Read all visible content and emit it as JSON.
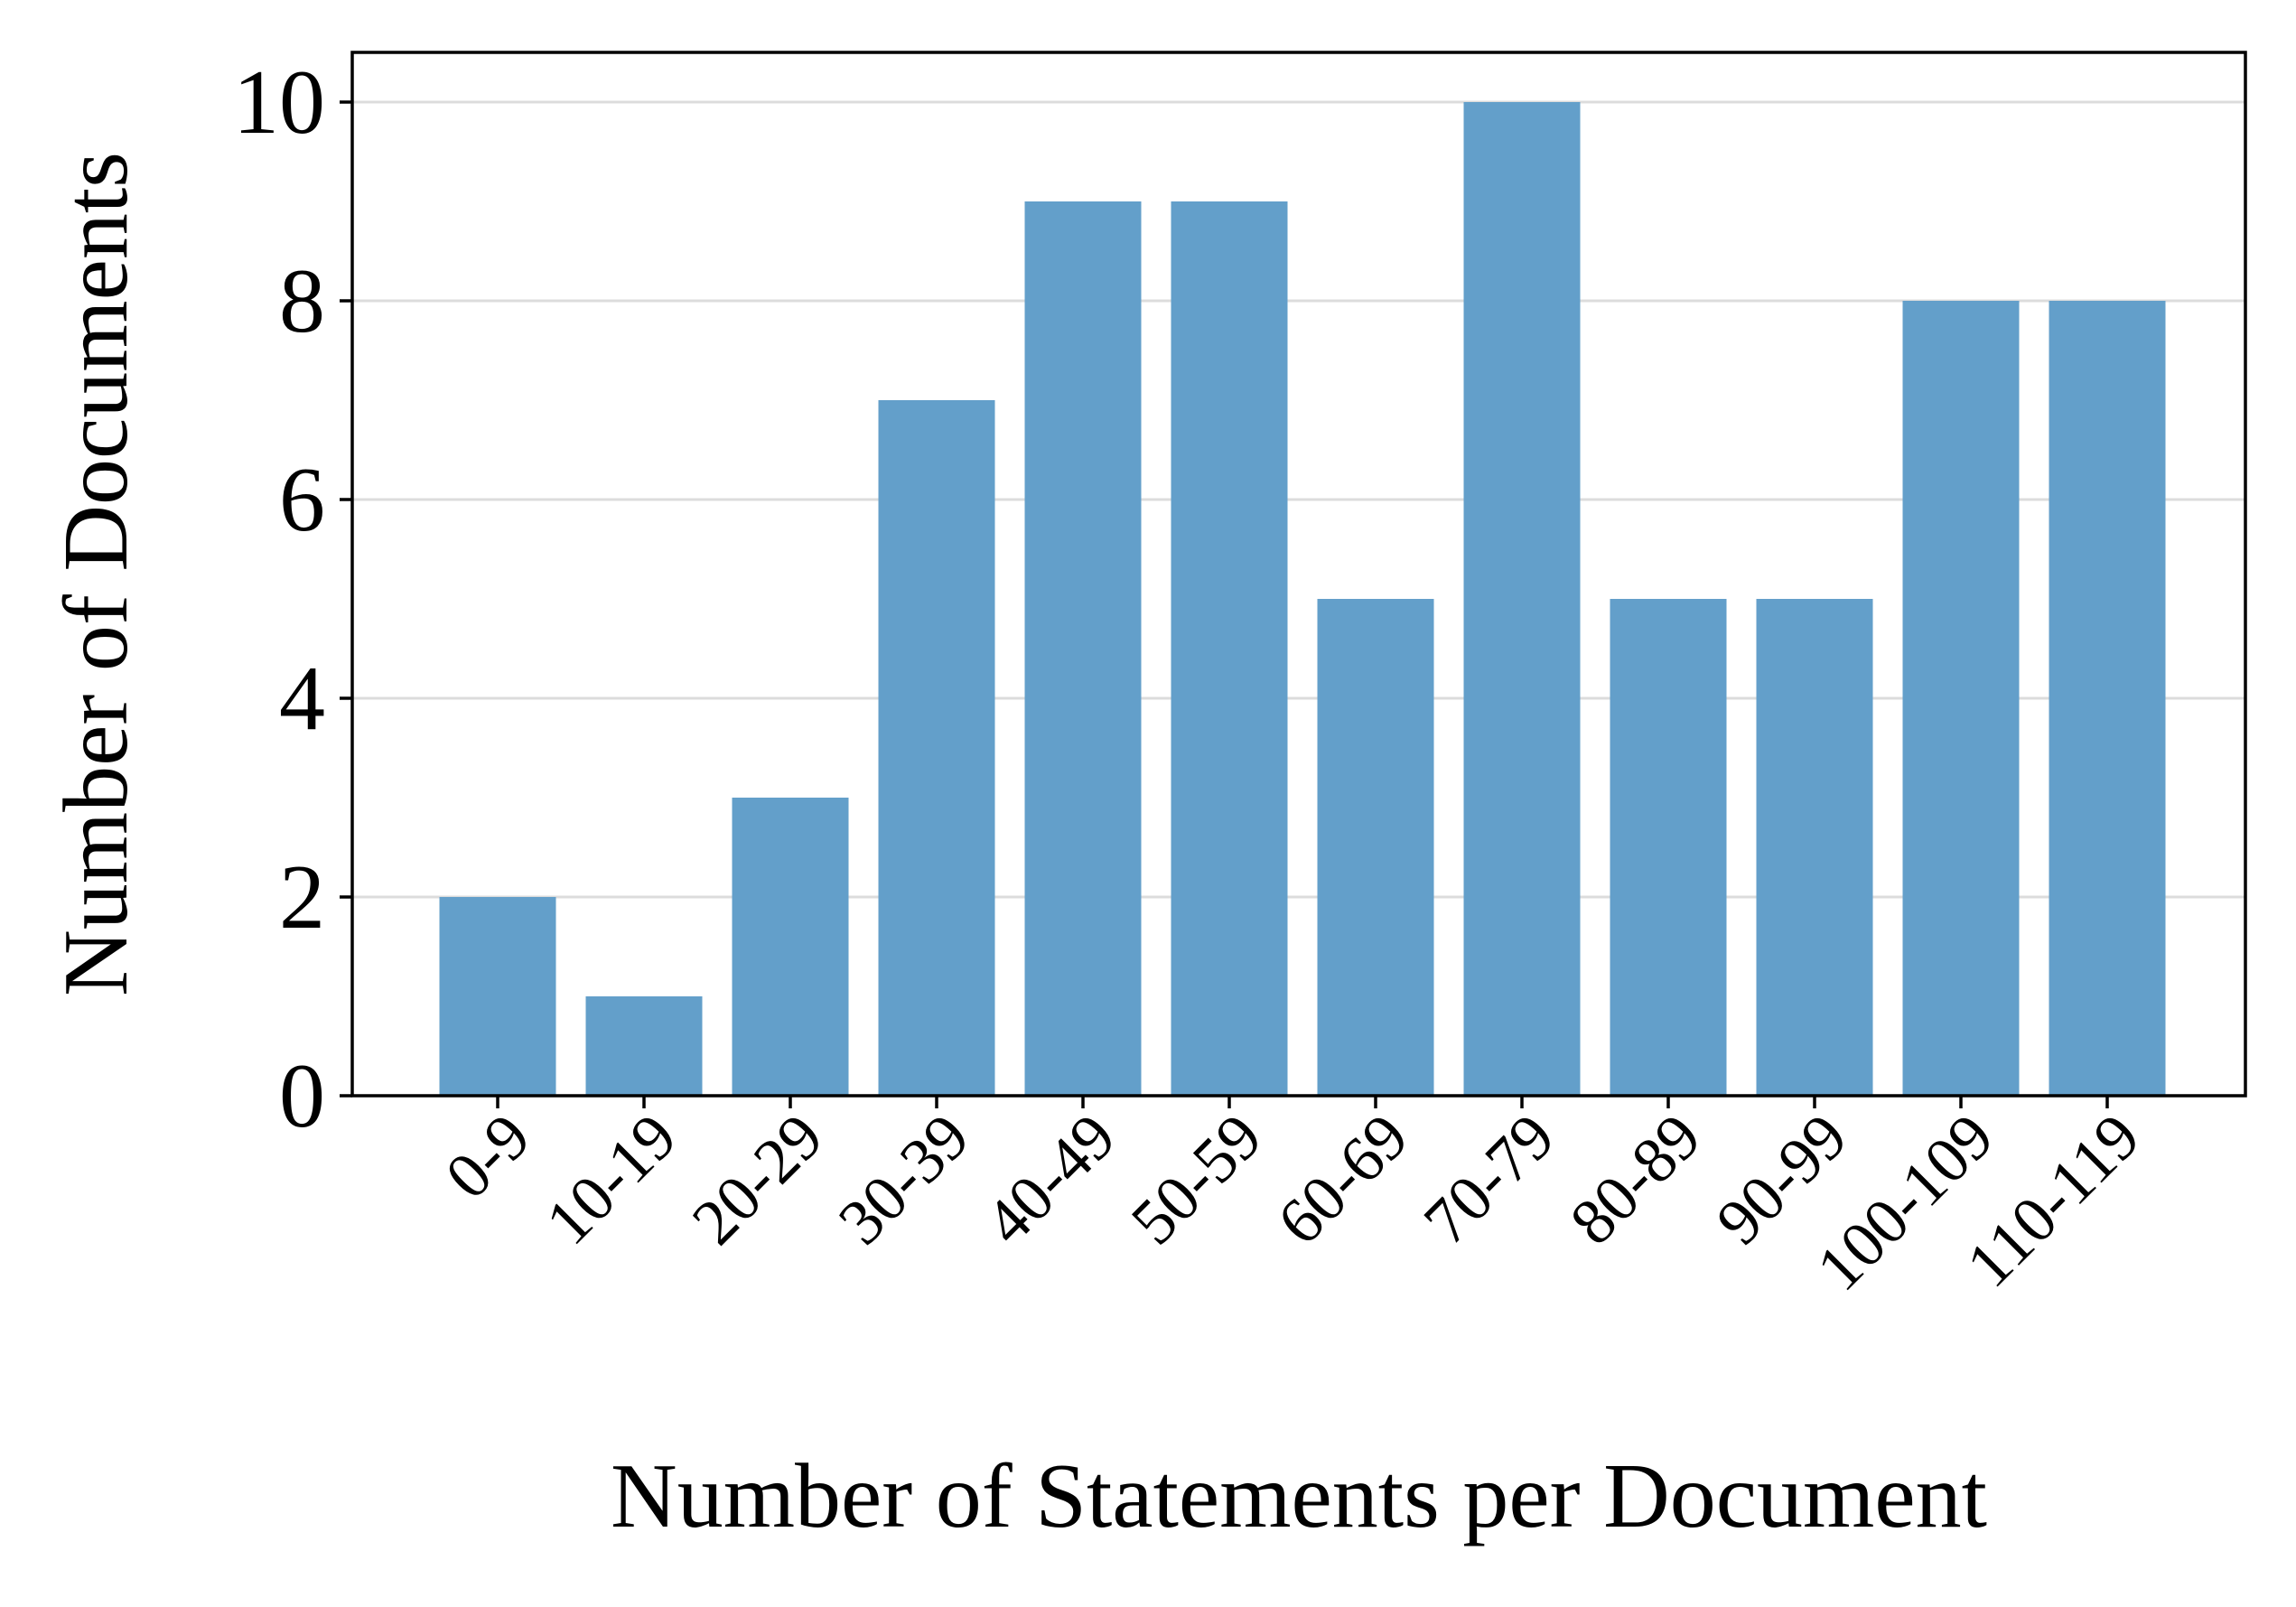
{
  "chart_data": {
    "type": "bar",
    "xlabel": "Number of Statements per Document",
    "ylabel": "Number of Documents",
    "categories": [
      "0-9",
      "10-19",
      "20-29",
      "30-39",
      "40-49",
      "50-59",
      "60-69",
      "70-79",
      "80-89",
      "90-99",
      "100-109",
      "110-119"
    ],
    "values": [
      2,
      1,
      3,
      7,
      9,
      9,
      5,
      10,
      5,
      5,
      8,
      8
    ],
    "ylim": [
      0,
      10.5
    ],
    "yticks": [
      0,
      2,
      4,
      6,
      8,
      10
    ],
    "grid": "horizontal",
    "bar_color": "#639fca"
  }
}
